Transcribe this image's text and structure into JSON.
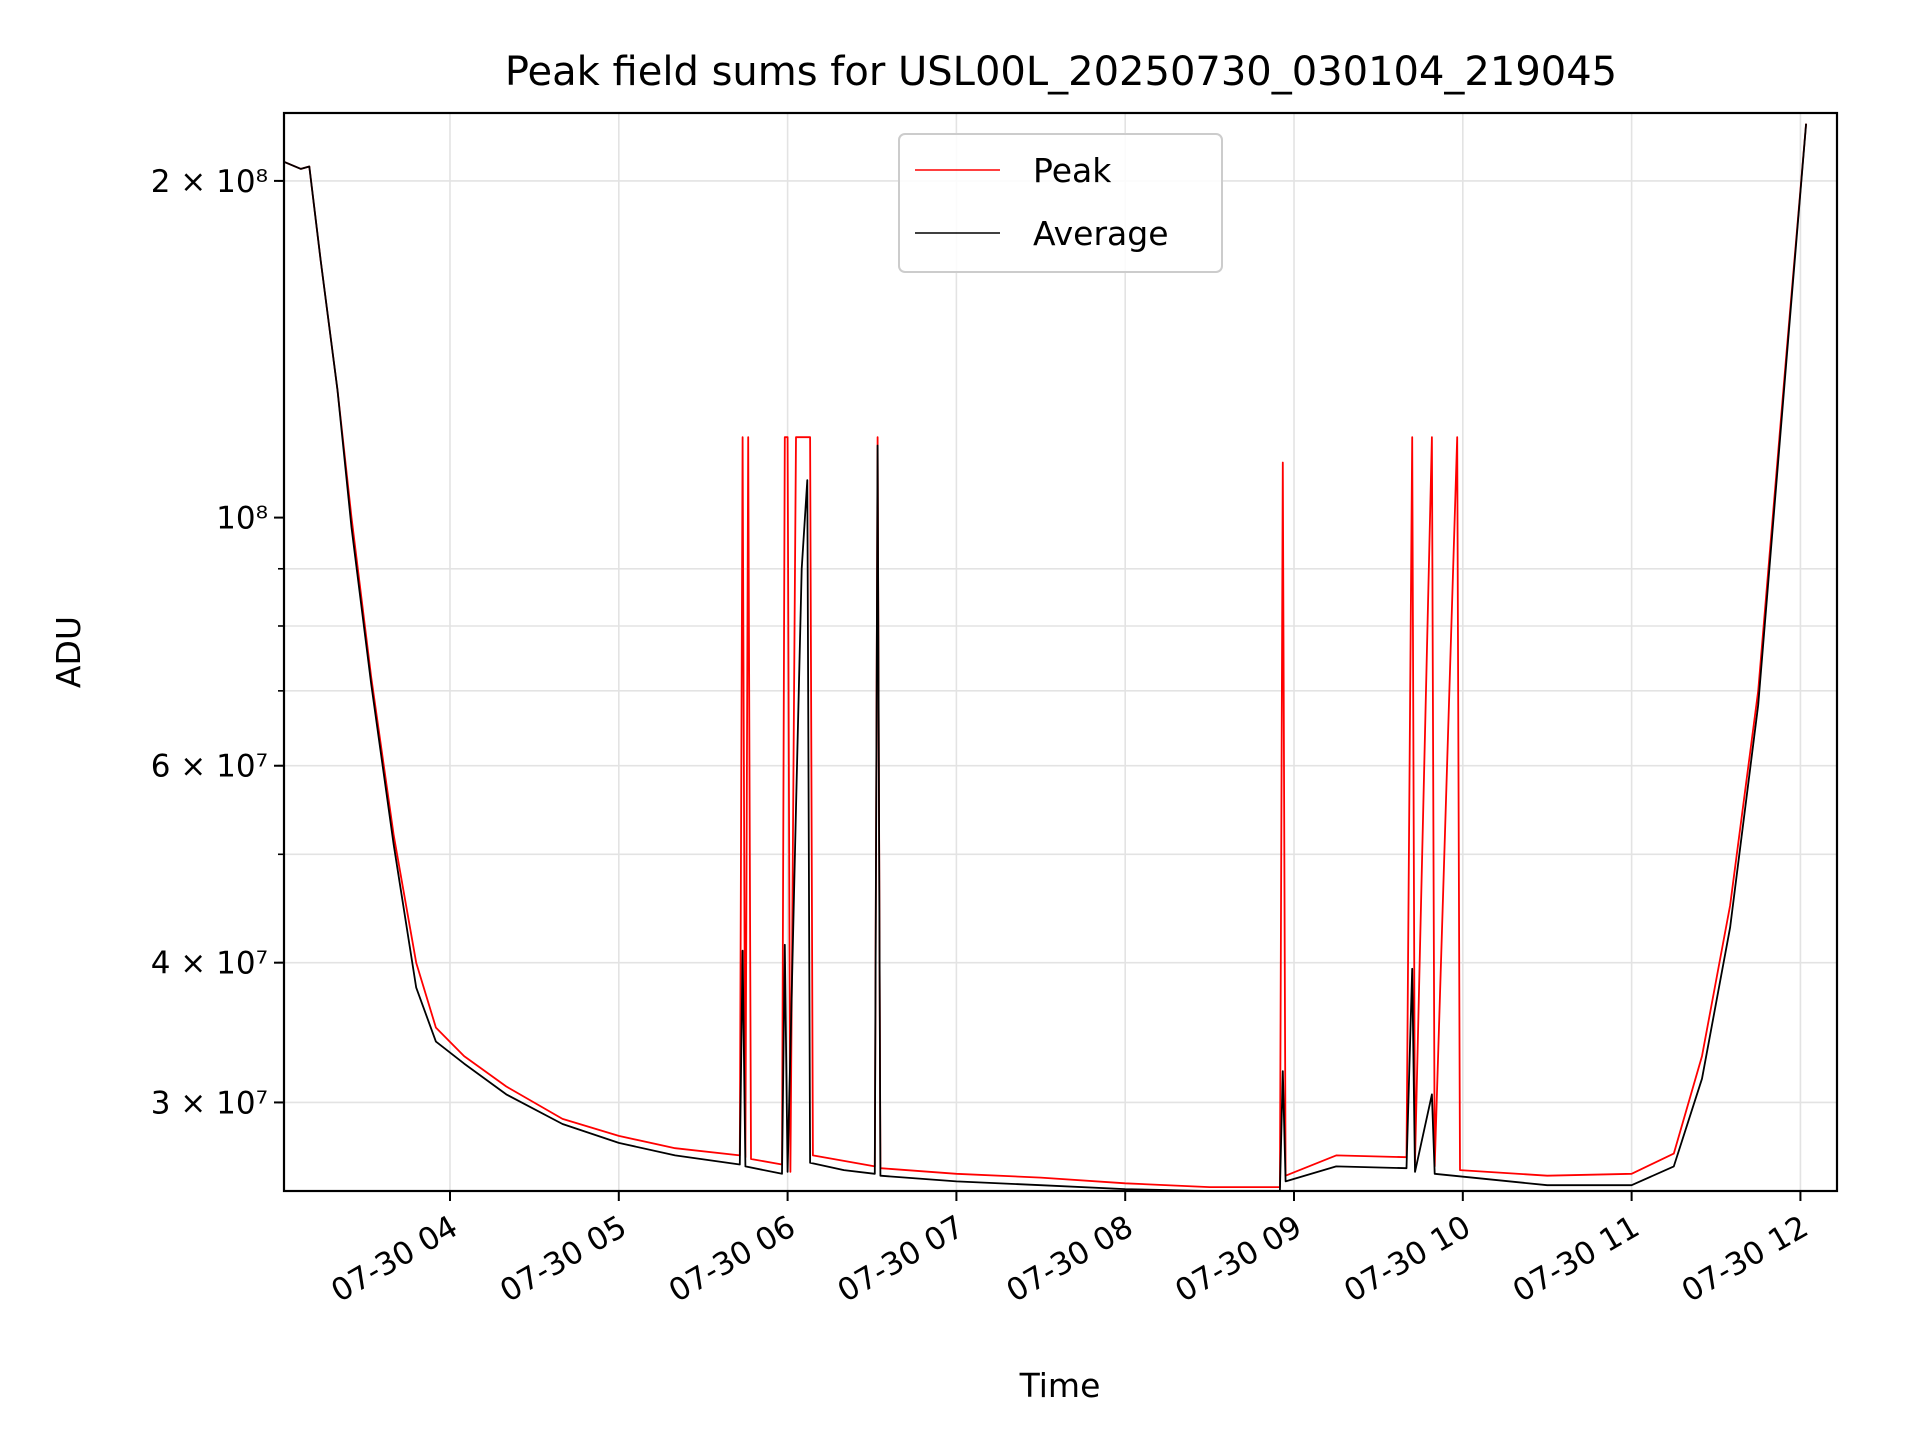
{
  "chart_data": {
    "type": "line",
    "title": "Peak field sums for USL00L_20250730_030104_219045",
    "xlabel": "Time",
    "ylabel": "ADU",
    "yscale": "log",
    "xlim": [
      "2025-07-30 03:01",
      "2025-07-30 12:13"
    ],
    "ylim": [
      25000000,
      230000000
    ],
    "grid": true,
    "legend_position": "top-center",
    "x_ticks": [
      "07-30 04",
      "07-30 05",
      "07-30 06",
      "07-30 07",
      "07-30 08",
      "07-30 09",
      "07-30 10",
      "07-30 11",
      "07-30 12"
    ],
    "y_ticks": [
      {
        "value": 200000000,
        "label": "2 × 10⁸"
      },
      {
        "value": 100000000,
        "label": "10⁸"
      },
      {
        "value": 60000000,
        "label": "6 × 10⁷"
      },
      {
        "value": 40000000,
        "label": "4 × 10⁷"
      },
      {
        "value": 30000000,
        "label": "3 × 10⁷"
      }
    ],
    "series": [
      {
        "name": "Peak",
        "color": "#ff0000",
        "points": [
          [
            "2025-07-30 03:01",
            208000000
          ],
          [
            "2025-07-30 03:07",
            205000000
          ],
          [
            "2025-07-30 03:10",
            206000000
          ],
          [
            "2025-07-30 03:14",
            170000000
          ],
          [
            "2025-07-30 03:20",
            130000000
          ],
          [
            "2025-07-30 03:25",
            100000000
          ],
          [
            "2025-07-30 03:32",
            72000000
          ],
          [
            "2025-07-30 03:40",
            52000000
          ],
          [
            "2025-07-30 03:48",
            40000000
          ],
          [
            "2025-07-30 03:55",
            35000000
          ],
          [
            "2025-07-30 04:05",
            33000000
          ],
          [
            "2025-07-30 04:20",
            31000000
          ],
          [
            "2025-07-30 04:40",
            29000000
          ],
          [
            "2025-07-30 05:00",
            28000000
          ],
          [
            "2025-07-30 05:20",
            27300000
          ],
          [
            "2025-07-30 05:43",
            26900000
          ],
          [
            "2025-07-30 05:44",
            118000000
          ],
          [
            "2025-07-30 05:45",
            26800000
          ],
          [
            "2025-07-30 05:46",
            118000000
          ],
          [
            "2025-07-30 05:47",
            26700000
          ],
          [
            "2025-07-30 05:58",
            26400000
          ],
          [
            "2025-07-30 05:59",
            118000000
          ],
          [
            "2025-07-30 06:00",
            118000000
          ],
          [
            "2025-07-30 06:01",
            26000000
          ],
          [
            "2025-07-30 06:03",
            118000000
          ],
          [
            "2025-07-30 06:08",
            118000000
          ],
          [
            "2025-07-30 06:09",
            26900000
          ],
          [
            "2025-07-30 06:20",
            26600000
          ],
          [
            "2025-07-30 06:31",
            26300000
          ],
          [
            "2025-07-30 06:32",
            118000000
          ],
          [
            "2025-07-30 06:33",
            26200000
          ],
          [
            "2025-07-30 07:00",
            25900000
          ],
          [
            "2025-07-30 07:30",
            25700000
          ],
          [
            "2025-07-30 08:00",
            25400000
          ],
          [
            "2025-07-30 08:30",
            25200000
          ],
          [
            "2025-07-30 08:55",
            25200000
          ],
          [
            "2025-07-30 08:56",
            112000000
          ],
          [
            "2025-07-30 08:57",
            25800000
          ],
          [
            "2025-07-30 09:15",
            26900000
          ],
          [
            "2025-07-30 09:40",
            26800000
          ],
          [
            "2025-07-30 09:42",
            118000000
          ],
          [
            "2025-07-30 09:43",
            26500000
          ],
          [
            "2025-07-30 09:49",
            118000000
          ],
          [
            "2025-07-30 09:50",
            26300000
          ],
          [
            "2025-07-30 09:58",
            118000000
          ],
          [
            "2025-07-30 09:59",
            26100000
          ],
          [
            "2025-07-30 10:30",
            25800000
          ],
          [
            "2025-07-30 11:00",
            25900000
          ],
          [
            "2025-07-30 11:15",
            27000000
          ],
          [
            "2025-07-30 11:25",
            33000000
          ],
          [
            "2025-07-30 11:35",
            45000000
          ],
          [
            "2025-07-30 11:45",
            70000000
          ],
          [
            "2025-07-30 11:55",
            140000000
          ],
          [
            "2025-07-30 12:02",
            225000000
          ]
        ]
      },
      {
        "name": "Average",
        "color": "#000000",
        "points": [
          [
            "2025-07-30 03:01",
            208000000
          ],
          [
            "2025-07-30 03:07",
            205000000
          ],
          [
            "2025-07-30 03:10",
            206000000
          ],
          [
            "2025-07-30 03:14",
            170000000
          ],
          [
            "2025-07-30 03:20",
            130000000
          ],
          [
            "2025-07-30 03:25",
            98000000
          ],
          [
            "2025-07-30 03:32",
            71000000
          ],
          [
            "2025-07-30 03:40",
            51000000
          ],
          [
            "2025-07-30 03:48",
            38000000
          ],
          [
            "2025-07-30 03:55",
            34000000
          ],
          [
            "2025-07-30 04:05",
            32500000
          ],
          [
            "2025-07-30 04:20",
            30500000
          ],
          [
            "2025-07-30 04:40",
            28700000
          ],
          [
            "2025-07-30 05:00",
            27600000
          ],
          [
            "2025-07-30 05:20",
            26900000
          ],
          [
            "2025-07-30 05:43",
            26400000
          ],
          [
            "2025-07-30 05:44",
            41000000
          ],
          [
            "2025-07-30 05:45",
            26300000
          ],
          [
            "2025-07-30 05:58",
            25900000
          ],
          [
            "2025-07-30 05:59",
            41500000
          ],
          [
            "2025-07-30 06:00",
            26000000
          ],
          [
            "2025-07-30 06:03",
            55000000
          ],
          [
            "2025-07-30 06:05",
            90000000
          ],
          [
            "2025-07-30 06:07",
            108000000
          ],
          [
            "2025-07-30 06:08",
            26500000
          ],
          [
            "2025-07-30 06:20",
            26100000
          ],
          [
            "2025-07-30 06:31",
            25900000
          ],
          [
            "2025-07-30 06:32",
            116000000
          ],
          [
            "2025-07-30 06:33",
            25800000
          ],
          [
            "2025-07-30 07:00",
            25500000
          ],
          [
            "2025-07-30 07:30",
            25300000
          ],
          [
            "2025-07-30 08:00",
            25100000
          ],
          [
            "2025-07-30 08:30",
            25000000
          ],
          [
            "2025-07-30 08:55",
            25000000
          ],
          [
            "2025-07-30 08:56",
            32000000
          ],
          [
            "2025-07-30 08:57",
            25500000
          ],
          [
            "2025-07-30 09:15",
            26300000
          ],
          [
            "2025-07-30 09:40",
            26200000
          ],
          [
            "2025-07-30 09:42",
            39500000
          ],
          [
            "2025-07-30 09:43",
            26000000
          ],
          [
            "2025-07-30 09:49",
            30500000
          ],
          [
            "2025-07-30 09:50",
            25900000
          ],
          [
            "2025-07-30 10:30",
            25300000
          ],
          [
            "2025-07-30 11:00",
            25300000
          ],
          [
            "2025-07-30 11:15",
            26300000
          ],
          [
            "2025-07-30 11:25",
            31500000
          ],
          [
            "2025-07-30 11:35",
            43000000
          ],
          [
            "2025-07-30 11:45",
            68000000
          ],
          [
            "2025-07-30 11:55",
            138000000
          ],
          [
            "2025-07-30 12:02",
            225000000
          ]
        ]
      }
    ]
  }
}
